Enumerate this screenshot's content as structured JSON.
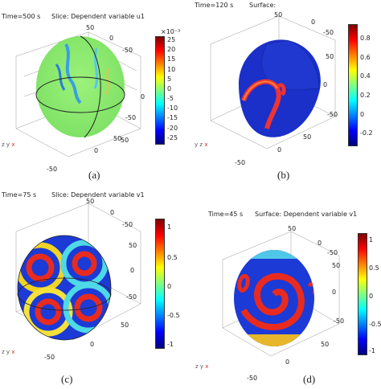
{
  "panels": [
    {
      "id": "a",
      "time_label": "Time=500 s",
      "plot_title": "Slice: Dependent variable u1",
      "caption": "(a)",
      "cbar_exponent": "×10⁻³",
      "cbar_ticks": [
        "25",
        "20",
        "15",
        "10",
        "5",
        "0",
        "-5",
        "-10",
        "-15",
        "-20",
        "-25"
      ],
      "axis_ticks": [
        "50",
        "0",
        "-50",
        "-50",
        "0",
        "50",
        "-50",
        "0",
        "50"
      ]
    },
    {
      "id": "b",
      "time_label": "Time=120 s",
      "plot_title": "Surface:",
      "caption": "(b)",
      "cbar_ticks": [
        "0.8",
        "0.6",
        "0.4",
        "0.2",
        "0",
        "-0.2"
      ],
      "axis_ticks": [
        "50",
        "0",
        "-50",
        "-50",
        "0",
        "50",
        "-50",
        "0",
        "50"
      ]
    },
    {
      "id": "c",
      "time_label": "Time=75 s",
      "plot_title": "Slice: Dependent variable v1",
      "caption": "(c)",
      "cbar_ticks": [
        "1",
        "0.5",
        "0",
        "-0.5",
        "-1"
      ],
      "axis_ticks": [
        "50",
        "0",
        "-50",
        "-50",
        "0",
        "50",
        "-50",
        "0",
        "50"
      ]
    },
    {
      "id": "d",
      "time_label": "Time=45 s",
      "plot_title": "Surface: Dependent variable v1",
      "caption": "(d)",
      "cbar_ticks": [
        "1",
        "0.5",
        "0",
        "-0.5",
        "-1"
      ],
      "axis_ticks": [
        "50",
        "0",
        "-50",
        "-50",
        "0",
        "50",
        "-50",
        "0",
        "50"
      ]
    }
  ],
  "axes_labels": {
    "y": "y",
    "z": "z",
    "x": "x"
  },
  "colors": {
    "jet_low": "#00007f",
    "jet_mid": "#7fff7f",
    "jet_high": "#7f0000"
  }
}
